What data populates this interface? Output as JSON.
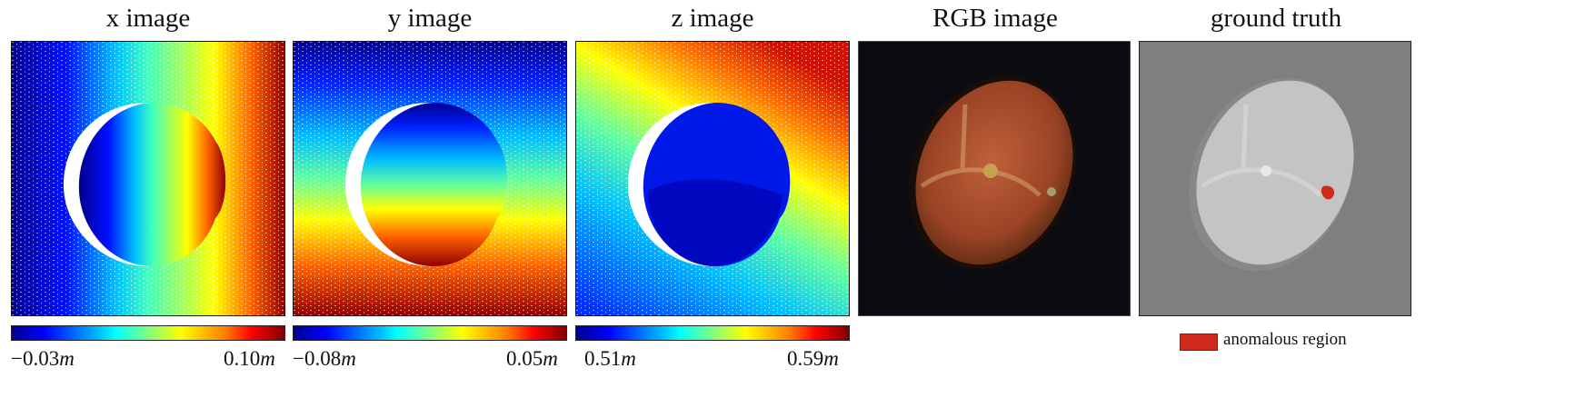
{
  "panels": [
    {
      "title": "x image",
      "colorbar": {
        "min_label": "−0.03",
        "max_label": "0.10",
        "unit": "m",
        "colormap": "jet"
      }
    },
    {
      "title": "y image",
      "colorbar": {
        "min_label": "−0.08",
        "max_label": "0.05",
        "unit": "m",
        "colormap": "jet"
      }
    },
    {
      "title": "z image",
      "colorbar": {
        "min_label": "0.51",
        "max_label": "0.59",
        "unit": "m",
        "colormap": "jet"
      }
    },
    {
      "title": "RGB image"
    },
    {
      "title": "ground truth"
    }
  ],
  "legend": {
    "label": "anomalous region",
    "color": "#d02a1c"
  }
}
